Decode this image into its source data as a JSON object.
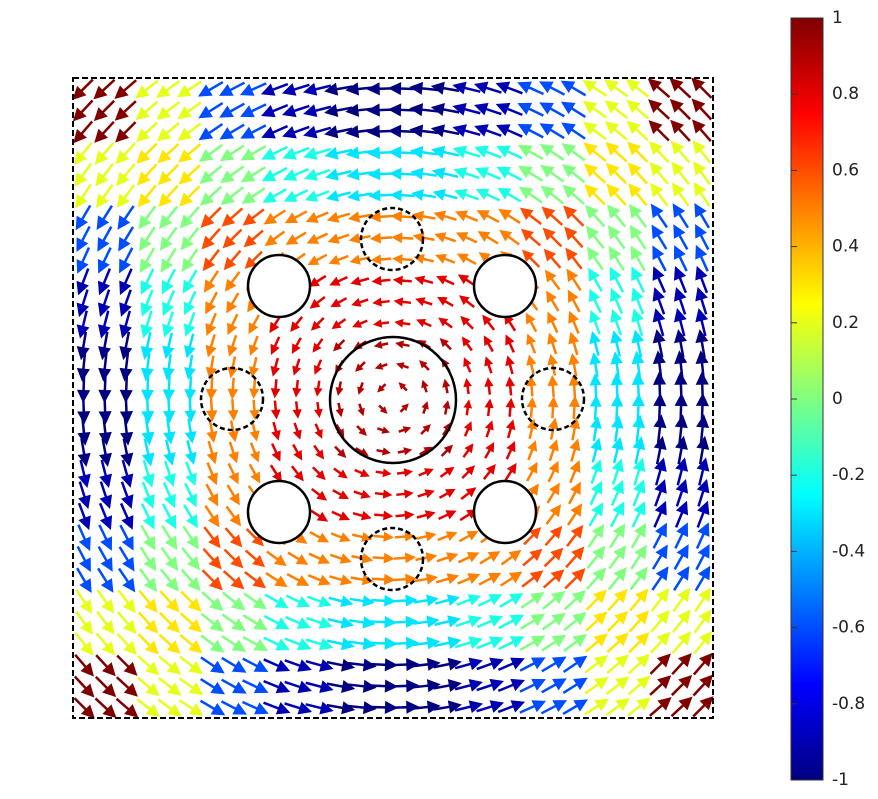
{
  "chart_data": {
    "type": "quiver",
    "grid_x": [
      -0.9,
      -0.7,
      -0.5,
      -0.3,
      -0.1,
      0.1,
      0.3,
      0.5,
      0.7,
      0.9
    ],
    "grid_y": [
      0.9,
      0.7,
      0.5,
      0.3,
      0.1,
      -0.1,
      -0.3,
      -0.5,
      -0.7,
      -0.9
    ],
    "values": [
      [
        1,
        0.2,
        -0.6,
        -0.9,
        -1,
        -1,
        -0.9,
        -0.6,
        0.2,
        1
      ],
      [
        0.2,
        0.3,
        0,
        -0.2,
        -0.3,
        -0.3,
        -0.2,
        0,
        0.3,
        0.2
      ],
      [
        -0.6,
        0,
        0.6,
        0.5,
        0.5,
        0.5,
        0.5,
        0.6,
        0,
        -0.6
      ],
      [
        -0.9,
        -0.2,
        0.5,
        0.8,
        0.8,
        0.8,
        0.8,
        0.5,
        -0.2,
        -0.9
      ],
      [
        -1,
        -0.3,
        0.5,
        0.8,
        0.9,
        0.9,
        0.8,
        0.5,
        -0.3,
        -1
      ],
      [
        -1,
        -0.3,
        0.5,
        0.8,
        0.9,
        0.9,
        0.8,
        0.5,
        -0.3,
        -1
      ],
      [
        -0.9,
        -0.2,
        0.5,
        0.8,
        0.8,
        0.8,
        0.8,
        0.5,
        -0.2,
        -0.9
      ],
      [
        -0.6,
        0,
        0.6,
        0.5,
        0.5,
        0.5,
        0.5,
        0.6,
        0,
        -0.6
      ],
      [
        0.2,
        0.3,
        0,
        -0.2,
        -0.3,
        -0.3,
        -0.2,
        0,
        0.3,
        0.2
      ],
      [
        1,
        0.2,
        -0.6,
        -0.9,
        -1,
        -1,
        -0.9,
        -0.6,
        0.2,
        1
      ]
    ],
    "xlim": [
      -1,
      1
    ],
    "ylim": [
      -1,
      1
    ],
    "colormap": "jet",
    "clim": [
      -1,
      1
    ],
    "cticks": [
      {
        "value": 1,
        "label": "1"
      },
      {
        "value": 0.8,
        "label": "0.8"
      },
      {
        "value": 0.6,
        "label": "0.6"
      },
      {
        "value": 0.4,
        "label": "0.4"
      },
      {
        "value": 0.2,
        "label": "0.2"
      },
      {
        "value": 0,
        "label": "0"
      },
      {
        "value": -0.2,
        "label": "-0.2"
      },
      {
        "value": -0.4,
        "label": "-0.4"
      },
      {
        "value": -0.6,
        "label": "-0.6"
      },
      {
        "value": -0.8,
        "label": "-0.8"
      },
      {
        "value": -1,
        "label": "-1"
      }
    ]
  }
}
